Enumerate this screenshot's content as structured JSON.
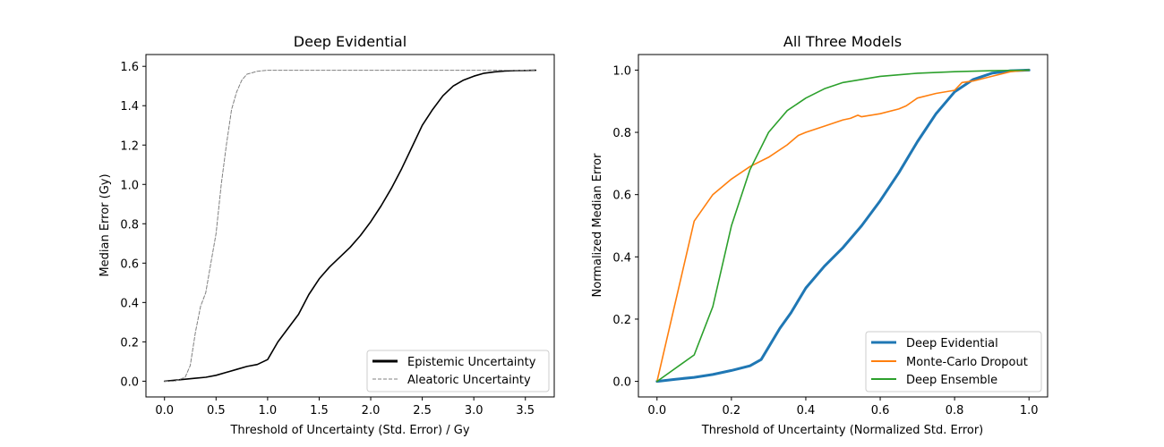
{
  "chart_data": [
    {
      "type": "line",
      "title": "Deep Evidential",
      "xlabel": "Threshold of Uncertainty (Std. Error) / Gy",
      "ylabel": "Median Error (Gy)",
      "xlim": [
        -0.18,
        3.78
      ],
      "ylim": [
        -0.08,
        1.66
      ],
      "xticks": [
        0.0,
        0.5,
        1.0,
        1.5,
        2.0,
        2.5,
        3.0,
        3.5
      ],
      "xtick_labels": [
        "0.0",
        "0.5",
        "1.0",
        "1.5",
        "2.0",
        "2.5",
        "3.0",
        "3.5"
      ],
      "yticks": [
        0.0,
        0.2,
        0.4,
        0.6,
        0.8,
        1.0,
        1.2,
        1.4,
        1.6
      ],
      "ytick_labels": [
        "0.0",
        "0.2",
        "0.4",
        "0.6",
        "0.8",
        "1.0",
        "1.2",
        "1.4",
        "1.6"
      ],
      "legend_position": "lower-right",
      "series": [
        {
          "name": "Epistemic Uncertainty",
          "color": "#000000",
          "style": "solid",
          "points": [
            [
              0.0,
              0.0
            ],
            [
              0.1,
              0.005
            ],
            [
              0.2,
              0.01
            ],
            [
              0.3,
              0.015
            ],
            [
              0.4,
              0.02
            ],
            [
              0.5,
              0.03
            ],
            [
              0.6,
              0.045
            ],
            [
              0.7,
              0.06
            ],
            [
              0.8,
              0.075
            ],
            [
              0.9,
              0.085
            ],
            [
              1.0,
              0.11
            ],
            [
              1.1,
              0.2
            ],
            [
              1.2,
              0.27
            ],
            [
              1.3,
              0.34
            ],
            [
              1.4,
              0.44
            ],
            [
              1.5,
              0.52
            ],
            [
              1.6,
              0.58
            ],
            [
              1.7,
              0.63
            ],
            [
              1.8,
              0.68
            ],
            [
              1.9,
              0.74
            ],
            [
              2.0,
              0.81
            ],
            [
              2.1,
              0.89
            ],
            [
              2.2,
              0.98
            ],
            [
              2.3,
              1.08
            ],
            [
              2.4,
              1.19
            ],
            [
              2.5,
              1.3
            ],
            [
              2.6,
              1.38
            ],
            [
              2.7,
              1.45
            ],
            [
              2.8,
              1.5
            ],
            [
              2.9,
              1.53
            ],
            [
              3.0,
              1.55
            ],
            [
              3.1,
              1.565
            ],
            [
              3.2,
              1.572
            ],
            [
              3.3,
              1.576
            ],
            [
              3.4,
              1.578
            ],
            [
              3.5,
              1.579
            ],
            [
              3.6,
              1.58
            ]
          ]
        },
        {
          "name": "Aleatoric Uncertainty",
          "color": "#808080",
          "style": "dashed",
          "points": [
            [
              0.0,
              0.0
            ],
            [
              0.1,
              0.0
            ],
            [
              0.2,
              0.02
            ],
            [
              0.25,
              0.08
            ],
            [
              0.3,
              0.25
            ],
            [
              0.35,
              0.38
            ],
            [
              0.4,
              0.45
            ],
            [
              0.45,
              0.6
            ],
            [
              0.5,
              0.75
            ],
            [
              0.55,
              1.0
            ],
            [
              0.6,
              1.2
            ],
            [
              0.65,
              1.38
            ],
            [
              0.7,
              1.47
            ],
            [
              0.75,
              1.53
            ],
            [
              0.8,
              1.56
            ],
            [
              0.9,
              1.575
            ],
            [
              1.0,
              1.58
            ],
            [
              1.5,
              1.58
            ],
            [
              2.0,
              1.58
            ],
            [
              2.5,
              1.58
            ],
            [
              3.0,
              1.58
            ],
            [
              3.6,
              1.58
            ]
          ]
        }
      ]
    },
    {
      "type": "line",
      "title": "All Three Models",
      "xlabel": "Threshold of Uncertainty (Normalized Std. Error)",
      "ylabel": "Normalized Median Error",
      "xlim": [
        -0.05,
        1.05
      ],
      "ylim": [
        -0.05,
        1.05
      ],
      "xticks": [
        0.0,
        0.2,
        0.4,
        0.6,
        0.8,
        1.0
      ],
      "xtick_labels": [
        "0.0",
        "0.2",
        "0.4",
        "0.6",
        "0.8",
        "1.0"
      ],
      "yticks": [
        0.0,
        0.2,
        0.4,
        0.6,
        0.8,
        1.0
      ],
      "ytick_labels": [
        "0.0",
        "0.2",
        "0.4",
        "0.6",
        "0.8",
        "1.0"
      ],
      "legend_position": "lower-right",
      "series": [
        {
          "name": "Deep Evidential",
          "color": "#1f77b4",
          "style": "solid-thick",
          "points": [
            [
              0.0,
              0.0
            ],
            [
              0.05,
              0.007
            ],
            [
              0.1,
              0.013
            ],
            [
              0.15,
              0.022
            ],
            [
              0.2,
              0.035
            ],
            [
              0.25,
              0.05
            ],
            [
              0.28,
              0.07
            ],
            [
              0.3,
              0.11
            ],
            [
              0.33,
              0.17
            ],
            [
              0.36,
              0.22
            ],
            [
              0.4,
              0.3
            ],
            [
              0.45,
              0.37
            ],
            [
              0.5,
              0.43
            ],
            [
              0.55,
              0.5
            ],
            [
              0.6,
              0.58
            ],
            [
              0.65,
              0.67
            ],
            [
              0.7,
              0.77
            ],
            [
              0.75,
              0.86
            ],
            [
              0.8,
              0.93
            ],
            [
              0.85,
              0.97
            ],
            [
              0.9,
              0.99
            ],
            [
              0.95,
              0.998
            ],
            [
              1.0,
              1.0
            ]
          ]
        },
        {
          "name": "Monte-Carlo Dropout",
          "color": "#ff7f0e",
          "style": "solid",
          "points": [
            [
              0.0,
              0.0
            ],
            [
              0.1,
              0.515
            ],
            [
              0.15,
              0.6
            ],
            [
              0.2,
              0.65
            ],
            [
              0.25,
              0.69
            ],
            [
              0.3,
              0.72
            ],
            [
              0.35,
              0.76
            ],
            [
              0.38,
              0.79
            ],
            [
              0.4,
              0.8
            ],
            [
              0.45,
              0.82
            ],
            [
              0.5,
              0.84
            ],
            [
              0.52,
              0.845
            ],
            [
              0.54,
              0.855
            ],
            [
              0.55,
              0.85
            ],
            [
              0.6,
              0.86
            ],
            [
              0.65,
              0.875
            ],
            [
              0.67,
              0.885
            ],
            [
              0.7,
              0.91
            ],
            [
              0.75,
              0.925
            ],
            [
              0.8,
              0.935
            ],
            [
              0.82,
              0.96
            ],
            [
              0.85,
              0.965
            ],
            [
              0.9,
              0.98
            ],
            [
              0.95,
              0.995
            ],
            [
              1.0,
              1.0
            ]
          ]
        },
        {
          "name": "Deep Ensemble",
          "color": "#2ca02c",
          "style": "solid",
          "points": [
            [
              0.0,
              0.0
            ],
            [
              0.1,
              0.085
            ],
            [
              0.15,
              0.24
            ],
            [
              0.2,
              0.5
            ],
            [
              0.25,
              0.68
            ],
            [
              0.3,
              0.8
            ],
            [
              0.35,
              0.87
            ],
            [
              0.4,
              0.91
            ],
            [
              0.45,
              0.94
            ],
            [
              0.5,
              0.96
            ],
            [
              0.6,
              0.98
            ],
            [
              0.7,
              0.99
            ],
            [
              0.8,
              0.995
            ],
            [
              0.9,
              0.998
            ],
            [
              1.0,
              1.0
            ]
          ]
        }
      ]
    }
  ]
}
